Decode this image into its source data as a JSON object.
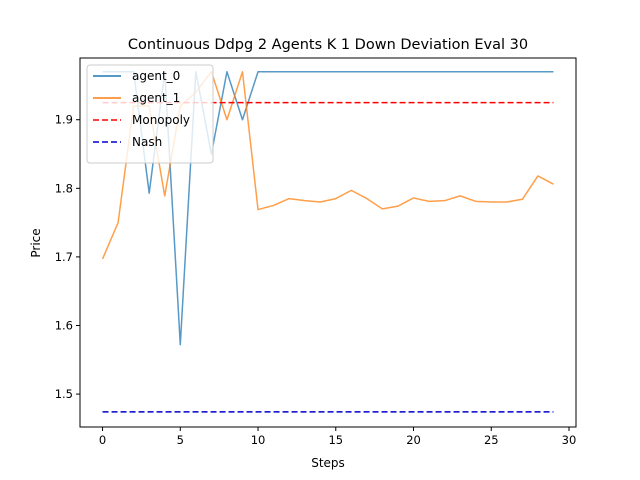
{
  "chart_data": {
    "type": "line",
    "title": "Continuous Ddpg 2 Agents K 1 Down Deviation Eval 30",
    "xlabel": "Steps",
    "ylabel": "Price",
    "xlim": [
      -1.45,
      30.45
    ],
    "ylim": [
      1.452,
      1.99
    ],
    "xticks": [
      0,
      5,
      10,
      15,
      20,
      25,
      30
    ],
    "yticks": [
      1.5,
      1.6,
      1.7,
      1.8,
      1.9
    ],
    "xtick_labels": [
      "0",
      "5",
      "10",
      "15",
      "20",
      "25",
      "30"
    ],
    "ytick_labels": [
      "1.5",
      "1.6",
      "1.7",
      "1.8",
      "1.9"
    ],
    "grid": false,
    "legend_position": "top-left",
    "x": [
      0,
      1,
      2,
      3,
      4,
      5,
      6,
      7,
      8,
      9,
      10,
      11,
      12,
      13,
      14,
      15,
      16,
      17,
      18,
      19,
      20,
      21,
      22,
      23,
      24,
      25,
      26,
      27,
      28,
      29
    ],
    "series": [
      {
        "name": "agent_0",
        "color": "#1f77b4",
        "style": "solid",
        "values": [
          1.97,
          1.97,
          1.97,
          1.793,
          1.97,
          1.572,
          1.97,
          1.85,
          1.97,
          1.9,
          1.97,
          1.97,
          1.97,
          1.97,
          1.97,
          1.97,
          1.97,
          1.97,
          1.97,
          1.97,
          1.97,
          1.97,
          1.97,
          1.97,
          1.97,
          1.97,
          1.97,
          1.97,
          1.97,
          1.97
        ]
      },
      {
        "name": "agent_1",
        "color": "#ff7f0e",
        "style": "solid",
        "values": [
          1.697,
          1.75,
          1.92,
          1.92,
          1.789,
          1.92,
          1.94,
          1.97,
          1.9,
          1.97,
          1.769,
          1.775,
          1.785,
          1.782,
          1.78,
          1.785,
          1.797,
          1.785,
          1.77,
          1.774,
          1.786,
          1.781,
          1.782,
          1.789,
          1.781,
          1.78,
          1.78,
          1.784,
          1.818,
          1.806
        ]
      },
      {
        "name": "Monopoly",
        "color": "#ff0000",
        "style": "dashed",
        "values": [
          1.925,
          1.925,
          1.925,
          1.925,
          1.925,
          1.925,
          1.925,
          1.925,
          1.925,
          1.925,
          1.925,
          1.925,
          1.925,
          1.925,
          1.925,
          1.925,
          1.925,
          1.925,
          1.925,
          1.925,
          1.925,
          1.925,
          1.925,
          1.925,
          1.925,
          1.925,
          1.925,
          1.925,
          1.925,
          1.925
        ]
      },
      {
        "name": "Nash",
        "color": "#0000cc",
        "style": "dashed",
        "values": [
          1.474,
          1.474,
          1.474,
          1.474,
          1.474,
          1.474,
          1.474,
          1.474,
          1.474,
          1.474,
          1.474,
          1.474,
          1.474,
          1.474,
          1.474,
          1.474,
          1.474,
          1.474,
          1.474,
          1.474,
          1.474,
          1.474,
          1.474,
          1.474,
          1.474,
          1.474,
          1.474,
          1.474,
          1.474,
          1.474
        ]
      }
    ]
  }
}
